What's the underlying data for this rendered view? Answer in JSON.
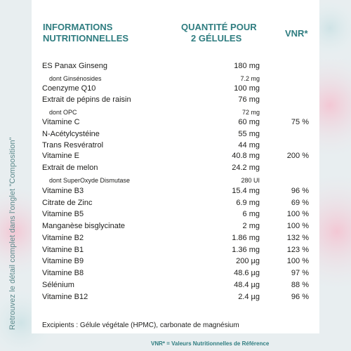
{
  "header": {
    "col1": [
      "INFORMATIONS",
      "NUTRITIONNELLES"
    ],
    "col2": [
      "QUANTITÉ POUR",
      "2 GÉLULES"
    ],
    "col3": "VNR*"
  },
  "side_note": "Retrouvez le détail complet dans l'onglet \"Composition\"",
  "rows": [
    {
      "name": "ES Panax Ginseng",
      "value": "180 mg",
      "vnr": "",
      "sub": false
    },
    {
      "name": "dont Ginsénosides",
      "value": "7.2 mg",
      "vnr": "",
      "sub": true
    },
    {
      "name": "Coenzyme Q10",
      "value": "100 mg",
      "vnr": "",
      "sub": false
    },
    {
      "name": "Extrait de pépins de raisin",
      "value": "76 mg",
      "vnr": "",
      "sub": false
    },
    {
      "name": "dont OPC",
      "value": "72 mg",
      "vnr": "",
      "sub": true
    },
    {
      "name": "Vitamine C",
      "value": "60 mg",
      "vnr": "75 %",
      "sub": false
    },
    {
      "name": "N-Acétylcystéine",
      "value": "55 mg",
      "vnr": "",
      "sub": false
    },
    {
      "name": "Trans Resvératrol",
      "value": "44 mg",
      "vnr": "",
      "sub": false
    },
    {
      "name": "Vitamine E",
      "value": "40.8 mg",
      "vnr": "200 %",
      "sub": false
    },
    {
      "name": "Extrait de melon",
      "value": "24.2 mg",
      "vnr": "",
      "sub": false
    },
    {
      "name": "dont SuperOxyde Dismutase",
      "value": "280 UI",
      "vnr": "",
      "sub": true
    },
    {
      "name": "Vitamine B3",
      "value": "15.4 mg",
      "vnr": "96 %",
      "sub": false
    },
    {
      "name": "Citrate de Zinc",
      "value": "6.9 mg",
      "vnr": "69 %",
      "sub": false
    },
    {
      "name": "Vitamine B5",
      "value": "6 mg",
      "vnr": "100 %",
      "sub": false
    },
    {
      "name": "Manganèse bisglycinate",
      "value": "2 mg",
      "vnr": "100 %",
      "sub": false
    },
    {
      "name": "Vitamine B2",
      "value": "1.86 mg",
      "vnr": "132 %",
      "sub": false
    },
    {
      "name": "Vitamine B1",
      "value": "1.36 mg",
      "vnr": "123 %",
      "sub": false
    },
    {
      "name": "Vitamine B9",
      "value": "200 µg",
      "vnr": "100 %",
      "sub": false
    },
    {
      "name": "Vitamine B8",
      "value": "48.6 µg",
      "vnr": "97 %",
      "sub": false
    },
    {
      "name": "Sélénium",
      "value": "48.4 µg",
      "vnr": "88 %",
      "sub": false
    },
    {
      "name": "Vitamine B12",
      "value": "2.4 µg",
      "vnr": "96 %",
      "sub": false
    }
  ],
  "excipients": "Excipients : Gélule végétale (HPMC), carbonate de magnésium",
  "footer": "VNR* = Valeurs Nutritionnelles de Référence"
}
